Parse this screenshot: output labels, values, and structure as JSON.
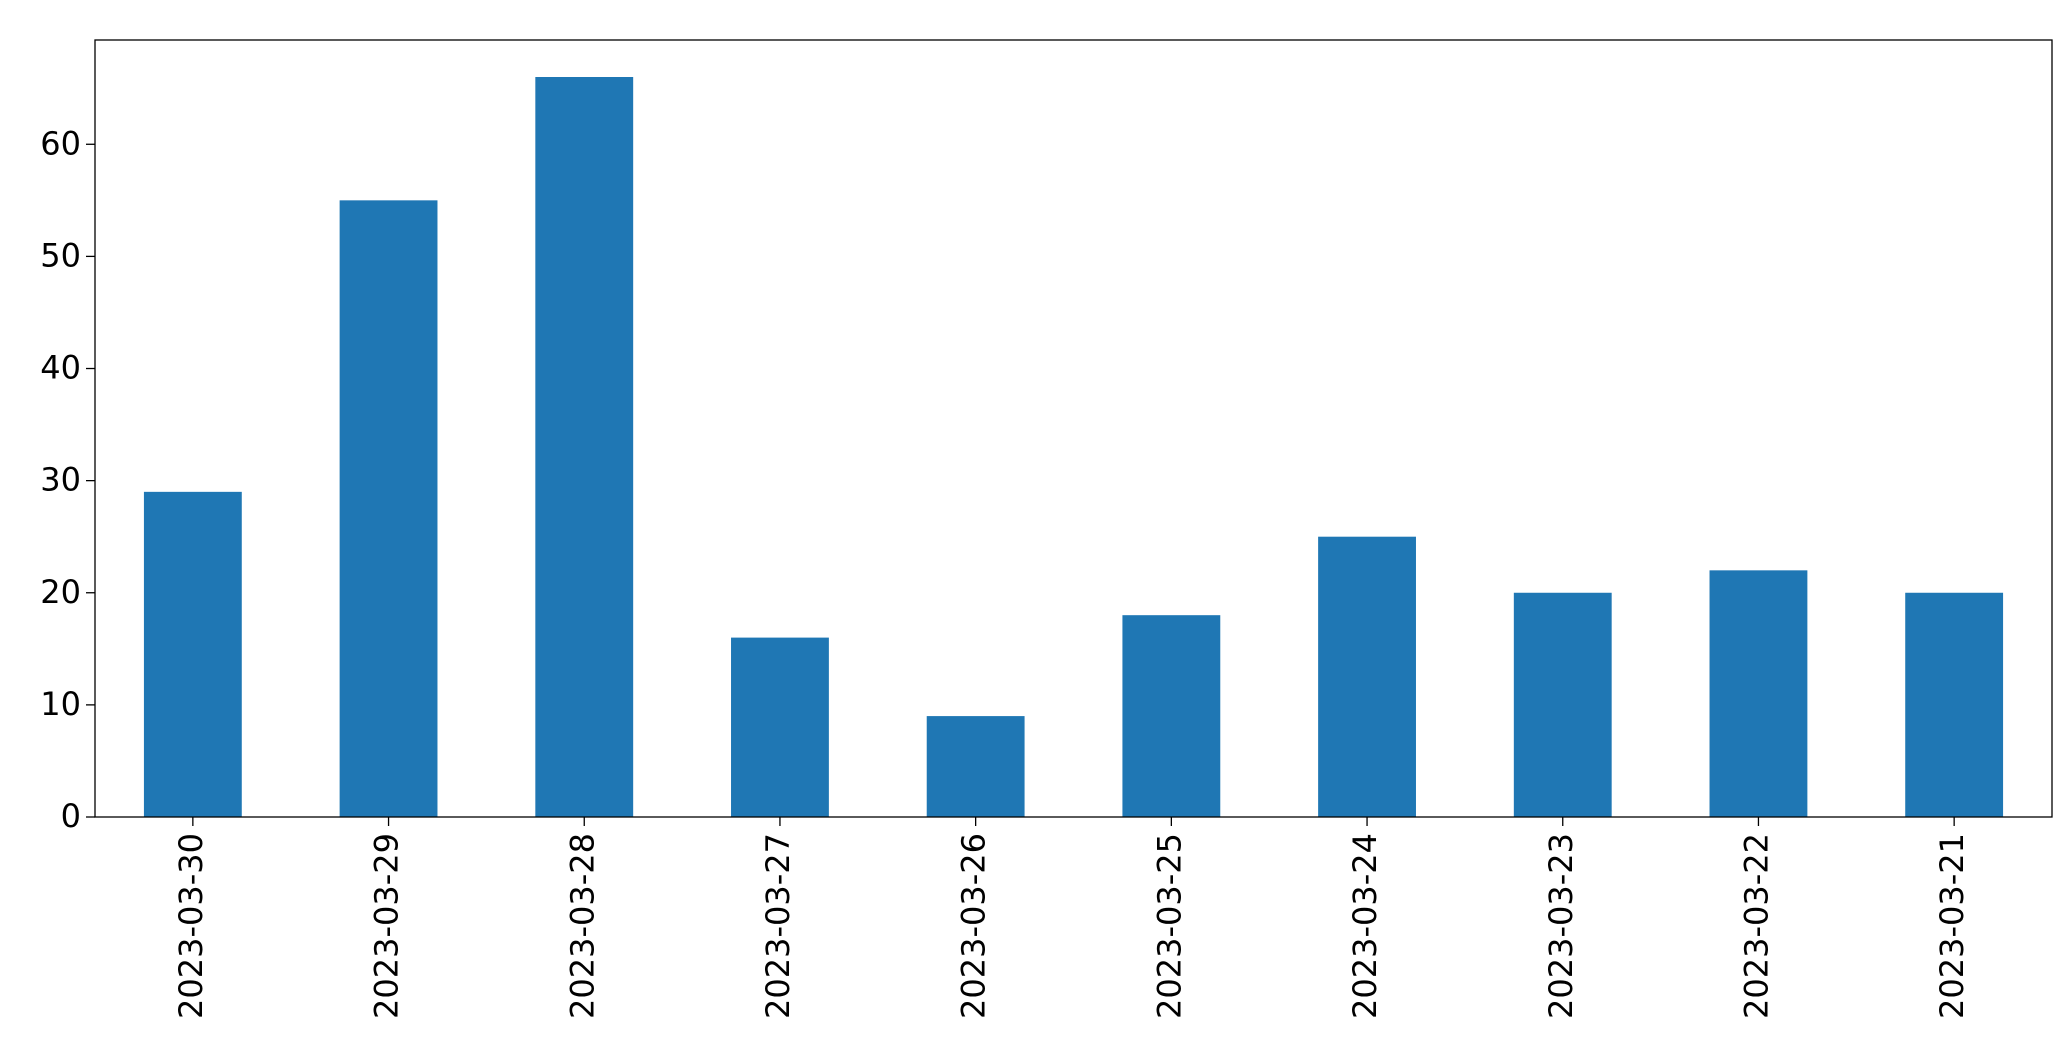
{
  "chart_data": {
    "type": "bar",
    "categories": [
      "2023-03-30",
      "2023-03-29",
      "2023-03-28",
      "2023-03-27",
      "2023-03-26",
      "2023-03-25",
      "2023-03-24",
      "2023-03-23",
      "2023-03-22",
      "2023-03-21"
    ],
    "values": [
      29,
      55,
      66,
      16,
      9,
      18,
      25,
      20,
      22,
      20
    ],
    "color": "#1f77b4",
    "ylim": [
      0,
      69.3
    ],
    "yticks": [
      0,
      10,
      20,
      30,
      40,
      50,
      60
    ],
    "grid": false
  }
}
